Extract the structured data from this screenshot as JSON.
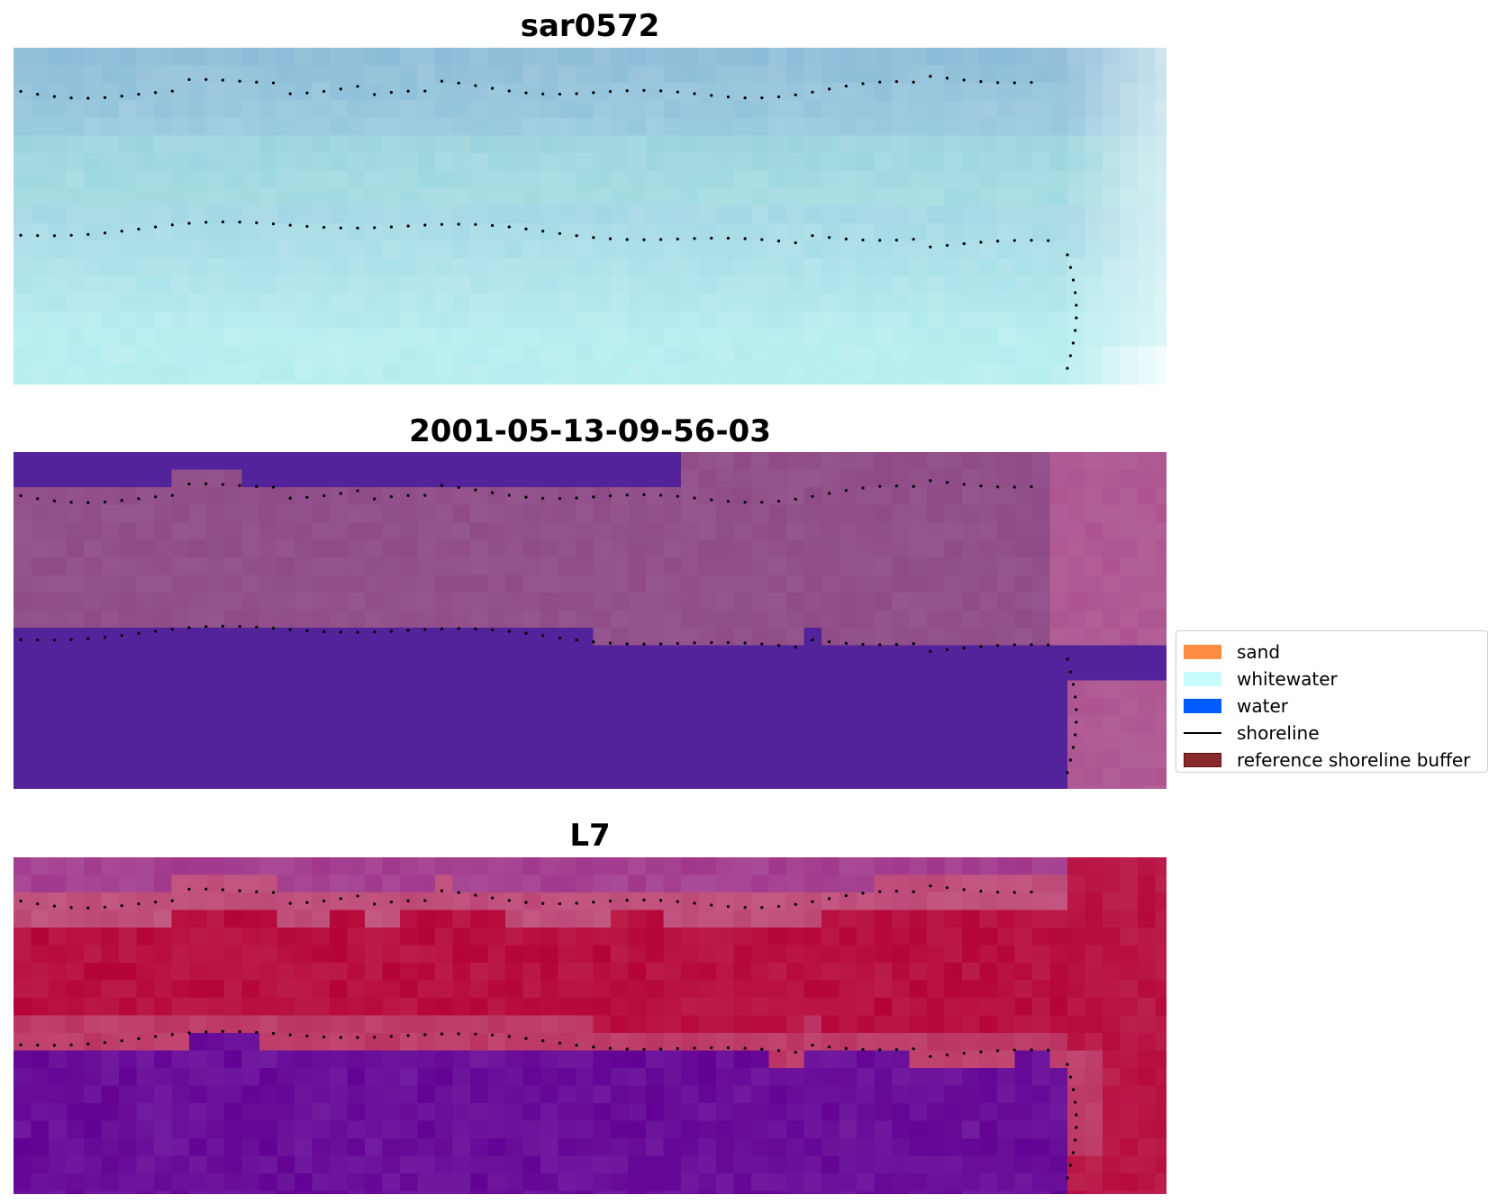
{
  "panels": [
    {
      "title": "sar0572",
      "style": "rgb"
    },
    {
      "title": "2001-05-13-09-56-03",
      "style": "classified"
    },
    {
      "title": "L7",
      "style": "index"
    }
  ],
  "legend": {
    "entries": [
      {
        "label": "sand",
        "color": "#ff8c42",
        "kind": "patch",
        "icon": "orange-swatch"
      },
      {
        "label": "whitewater",
        "color": "#c8fbfb",
        "kind": "patch",
        "icon": "cyan-swatch"
      },
      {
        "label": "water",
        "color": "#005cff",
        "kind": "patch",
        "icon": "blue-swatch"
      },
      {
        "label": "shoreline",
        "color": "#000000",
        "kind": "line",
        "icon": "black-line"
      },
      {
        "label": "reference shoreline buffer",
        "color": "#8b2a2a",
        "kind": "patch",
        "icon": "dark-red-swatch"
      }
    ]
  },
  "colors": {
    "rgb_deep": "#8fbcd8",
    "rgb_light": "#b8eef0",
    "classified_water": "#52239a",
    "classified_land": "#92508a",
    "index_red": "#b8103f",
    "index_purple": "#6a0f9a",
    "index_pink": "#c0507c"
  }
}
